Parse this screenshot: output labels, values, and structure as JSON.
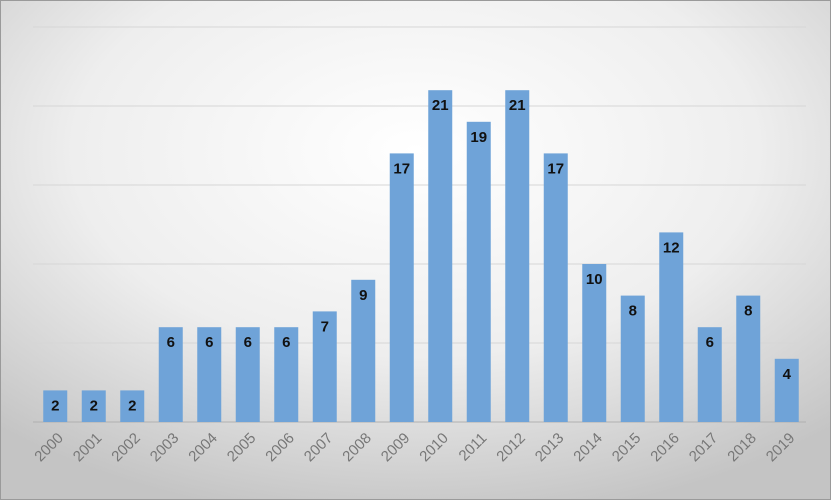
{
  "chart_data": {
    "type": "bar",
    "categories": [
      "2000",
      "2001",
      "2002",
      "2003",
      "2004",
      "2005",
      "2006",
      "2007",
      "2008",
      "2009",
      "2010",
      "2011",
      "2012",
      "2013",
      "2014",
      "2015",
      "2016",
      "2017",
      "2018",
      "2019"
    ],
    "values": [
      2,
      2,
      2,
      6,
      6,
      6,
      6,
      7,
      9,
      17,
      21,
      19,
      21,
      17,
      10,
      8,
      12,
      6,
      8,
      4
    ],
    "color": "#6fa3d8",
    "ylim": [
      0,
      25
    ],
    "yticks": [
      0,
      5,
      10,
      15,
      20,
      25
    ],
    "grid": true
  }
}
